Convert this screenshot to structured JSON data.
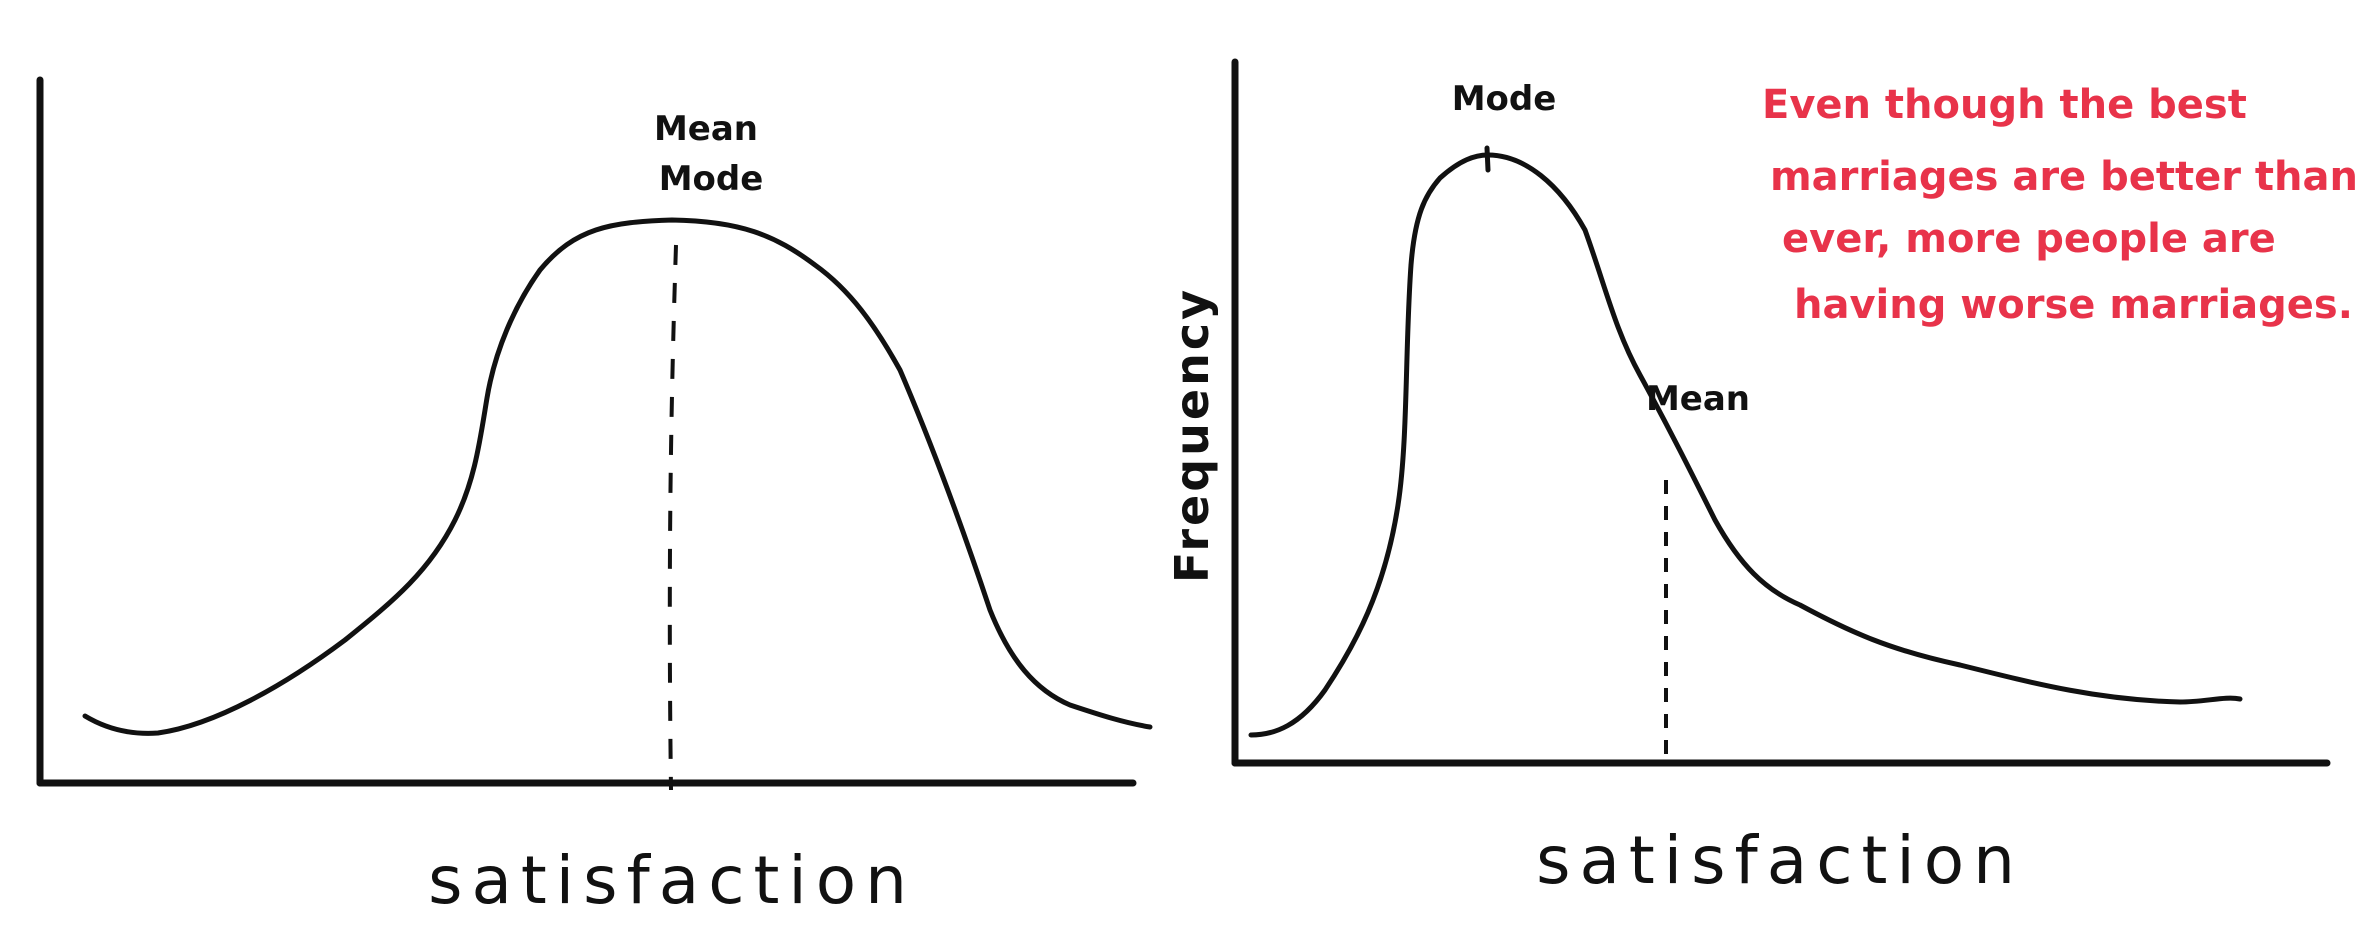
{
  "panels": [
    {
      "xlabel": "satisfaction",
      "ylabel": "",
      "labels": [
        "Mean",
        "Mode"
      ]
    },
    {
      "xlabel": "satisfaction",
      "ylabel": "Frequency",
      "labels": [
        "Mode",
        "Mean"
      ]
    }
  ],
  "annotation": {
    "lines": [
      "Even though the best",
      "marriages are better than",
      "ever, more people are",
      "having worse marriages."
    ],
    "color": "#e8334a"
  },
  "colors": {
    "ink": "#111111",
    "background": "#ffffff"
  }
}
